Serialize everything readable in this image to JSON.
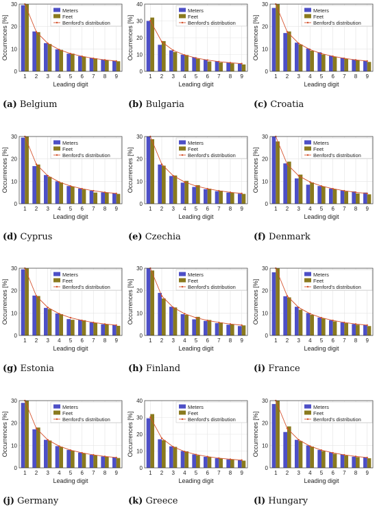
{
  "legend": {
    "meters_label": "Meters",
    "feet_label": "Feet",
    "benford_label": "Benford's distribution"
  },
  "colors": {
    "meters": "#4d4fc6",
    "feet": "#8a7a1e",
    "benford": "#d4502a",
    "grid": "#e3e3e3"
  },
  "chart_data": [
    {
      "type": "bar",
      "panel_label": "(a)",
      "title": "Belgium",
      "xlabel": "Leading digit",
      "ylabel": "Occurrences [%]",
      "categories": [
        "1",
        "2",
        "3",
        "4",
        "5",
        "6",
        "7",
        "8",
        "9"
      ],
      "ylim": [
        0,
        30
      ],
      "yticks": [
        0,
        10,
        20,
        30
      ],
      "series": [
        {
          "name": "Meters",
          "values": [
            29.5,
            17.8,
            12.6,
            9.8,
            7.9,
            6.8,
            6.0,
            5.2,
            4.7
          ]
        },
        {
          "name": "Feet",
          "values": [
            31.0,
            17.5,
            12.2,
            9.6,
            7.9,
            6.6,
            5.8,
            5.0,
            4.5
          ]
        },
        {
          "name": "Benford's distribution",
          "values": [
            30.1,
            17.6,
            12.5,
            9.7,
            7.9,
            6.7,
            5.8,
            5.1,
            4.6
          ]
        }
      ]
    },
    {
      "type": "bar",
      "panel_label": "(b)",
      "title": "Bulgaria",
      "xlabel": "Leading digit",
      "ylabel": "Occurrences [%]",
      "categories": [
        "1",
        "2",
        "3",
        "4",
        "5",
        "6",
        "7",
        "8",
        "9"
      ],
      "ylim": [
        0,
        40
      ],
      "yticks": [
        0,
        10,
        20,
        30,
        40
      ],
      "series": [
        {
          "name": "Meters",
          "values": [
            30.0,
            15.8,
            12.5,
            9.9,
            8.4,
            6.9,
            6.0,
            5.1,
            4.5
          ]
        },
        {
          "name": "Feet",
          "values": [
            32.0,
            18.0,
            11.5,
            9.7,
            7.5,
            5.9,
            5.3,
            4.8,
            4.1
          ]
        },
        {
          "name": "Benford's distribution",
          "values": [
            30.1,
            17.6,
            12.5,
            9.7,
            7.9,
            6.7,
            5.8,
            5.1,
            4.6
          ]
        }
      ]
    },
    {
      "type": "bar",
      "panel_label": "(c)",
      "title": "Croatia",
      "xlabel": "Leading digit",
      "ylabel": "Occurrences [%]",
      "categories": [
        "1",
        "2",
        "3",
        "4",
        "5",
        "6",
        "7",
        "8",
        "9"
      ],
      "ylim": [
        0,
        30
      ],
      "yticks": [
        0,
        10,
        20,
        30
      ],
      "series": [
        {
          "name": "Meters",
          "values": [
            28.3,
            17.1,
            12.8,
            10.2,
            8.5,
            7.0,
            6.1,
            5.3,
            4.7
          ]
        },
        {
          "name": "Feet",
          "values": [
            32.5,
            17.8,
            12.0,
            9.2,
            7.5,
            6.5,
            5.6,
            4.9,
            4.2
          ]
        },
        {
          "name": "Benford's distribution",
          "values": [
            30.1,
            17.6,
            12.5,
            9.7,
            7.9,
            6.7,
            5.8,
            5.1,
            4.6
          ]
        }
      ]
    },
    {
      "type": "bar",
      "panel_label": "(d)",
      "title": "Cyprus",
      "xlabel": "Leading digit",
      "ylabel": "Occurrences [%]",
      "categories": [
        "1",
        "2",
        "3",
        "4",
        "5",
        "6",
        "7",
        "8",
        "9"
      ],
      "ylim": [
        0,
        30
      ],
      "yticks": [
        0,
        10,
        20,
        30
      ],
      "series": [
        {
          "name": "Meters",
          "values": [
            29.5,
            16.8,
            12.8,
            10.0,
            7.9,
            6.8,
            5.8,
            5.1,
            4.6
          ]
        },
        {
          "name": "Feet",
          "values": [
            31.0,
            17.5,
            12.0,
            9.5,
            7.7,
            6.4,
            5.0,
            5.0,
            4.4
          ]
        },
        {
          "name": "Benford's distribution",
          "values": [
            30.1,
            17.6,
            12.5,
            9.7,
            7.9,
            6.7,
            5.8,
            5.1,
            4.6
          ]
        }
      ]
    },
    {
      "type": "bar",
      "panel_label": "(e)",
      "title": "Czechia",
      "xlabel": "Leading digit",
      "ylabel": "Occurrences [%]",
      "categories": [
        "1",
        "2",
        "3",
        "4",
        "5",
        "6",
        "7",
        "8",
        "9"
      ],
      "ylim": [
        0,
        30
      ],
      "yticks": [
        0,
        10,
        20,
        30
      ],
      "series": [
        {
          "name": "Meters",
          "values": [
            31.0,
            17.5,
            12.4,
            9.4,
            7.5,
            6.5,
            5.6,
            5.0,
            4.5
          ]
        },
        {
          "name": "Feet",
          "values": [
            28.8,
            17.0,
            12.6,
            10.2,
            8.3,
            6.7,
            5.8,
            5.0,
            4.4
          ]
        },
        {
          "name": "Benford's distribution",
          "values": [
            30.1,
            17.6,
            12.5,
            9.7,
            7.9,
            6.7,
            5.8,
            5.1,
            4.6
          ]
        }
      ]
    },
    {
      "type": "bar",
      "panel_label": "(f)",
      "title": "Denmark",
      "xlabel": "Leading digit",
      "ylabel": "Occurrences [%]",
      "categories": [
        "1",
        "2",
        "3",
        "4",
        "5",
        "6",
        "7",
        "8",
        "9"
      ],
      "ylim": [
        0,
        30
      ],
      "yticks": [
        0,
        10,
        20,
        30
      ],
      "series": [
        {
          "name": "Meters",
          "values": [
            30.5,
            18.0,
            11.3,
            8.5,
            7.9,
            6.8,
            5.9,
            5.5,
            5.0
          ]
        },
        {
          "name": "Feet",
          "values": [
            27.8,
            18.8,
            13.0,
            9.5,
            7.7,
            6.5,
            5.5,
            4.6,
            4.2
          ]
        },
        {
          "name": "Benford's distribution",
          "values": [
            30.1,
            17.6,
            12.5,
            9.7,
            7.9,
            6.7,
            5.8,
            5.1,
            4.6
          ]
        }
      ]
    },
    {
      "type": "bar",
      "panel_label": "(g)",
      "title": "Estonia",
      "xlabel": "Leading digit",
      "ylabel": "Occurrences [%]",
      "categories": [
        "1",
        "2",
        "3",
        "4",
        "5",
        "6",
        "7",
        "8",
        "9"
      ],
      "ylim": [
        0,
        30
      ],
      "yticks": [
        0,
        10,
        20,
        30
      ],
      "series": [
        {
          "name": "Meters",
          "values": [
            29.5,
            17.8,
            12.3,
            9.8,
            7.3,
            7.0,
            5.8,
            5.0,
            4.6
          ]
        },
        {
          "name": "Feet",
          "values": [
            30.0,
            17.6,
            11.8,
            9.5,
            7.0,
            6.8,
            5.6,
            4.9,
            4.3
          ]
        },
        {
          "name": "Benford's distribution",
          "values": [
            30.1,
            17.6,
            12.5,
            9.7,
            7.9,
            6.7,
            5.8,
            5.1,
            4.6
          ]
        }
      ]
    },
    {
      "type": "bar",
      "panel_label": "(h)",
      "title": "Finland",
      "xlabel": "Leading digit",
      "ylabel": "Occurrences [%]",
      "categories": [
        "1",
        "2",
        "3",
        "4",
        "5",
        "6",
        "7",
        "8",
        "9"
      ],
      "ylim": [
        0,
        30
      ],
      "yticks": [
        0,
        10,
        20,
        30
      ],
      "series": [
        {
          "name": "Meters",
          "values": [
            30.5,
            19.0,
            12.8,
            9.5,
            7.2,
            6.5,
            5.5,
            4.8,
            4.2
          ]
        },
        {
          "name": "Feet",
          "values": [
            29.0,
            16.5,
            12.5,
            9.2,
            8.3,
            6.9,
            5.8,
            5.0,
            4.5
          ]
        },
        {
          "name": "Benford's distribution",
          "values": [
            30.1,
            17.6,
            12.5,
            9.7,
            7.9,
            6.7,
            5.8,
            5.1,
            4.6
          ]
        }
      ]
    },
    {
      "type": "bar",
      "panel_label": "(i)",
      "title": "France",
      "xlabel": "Leading digit",
      "ylabel": "Occurrences [%]",
      "categories": [
        "1",
        "2",
        "3",
        "4",
        "5",
        "6",
        "7",
        "8",
        "9"
      ],
      "ylim": [
        0,
        30
      ],
      "yticks": [
        0,
        10,
        20,
        30
      ],
      "series": [
        {
          "name": "Meters",
          "values": [
            28.2,
            17.5,
            12.8,
            10.0,
            8.0,
            6.8,
            5.8,
            5.1,
            4.6
          ]
        },
        {
          "name": "Feet",
          "values": [
            32.0,
            17.0,
            11.5,
            9.2,
            7.6,
            6.3,
            5.5,
            4.8,
            4.2
          ]
        },
        {
          "name": "Benford's distribution",
          "values": [
            30.1,
            17.6,
            12.5,
            9.7,
            7.9,
            6.7,
            5.8,
            5.1,
            4.6
          ]
        }
      ]
    },
    {
      "type": "bar",
      "panel_label": "(j)",
      "title": "Germany",
      "xlabel": "Leading digit",
      "ylabel": "Occurrences [%]",
      "categories": [
        "1",
        "2",
        "3",
        "4",
        "5",
        "6",
        "7",
        "8",
        "9"
      ],
      "ylim": [
        0,
        30
      ],
      "yticks": [
        0,
        10,
        20,
        30
      ],
      "series": [
        {
          "name": "Meters",
          "values": [
            29.0,
            17.2,
            12.5,
            9.7,
            8.0,
            6.8,
            5.8,
            5.1,
            4.6
          ]
        },
        {
          "name": "Feet",
          "values": [
            30.5,
            18.0,
            12.2,
            9.4,
            7.7,
            6.5,
            5.6,
            4.9,
            4.4
          ]
        },
        {
          "name": "Benford's distribution",
          "values": [
            30.1,
            17.6,
            12.5,
            9.7,
            7.9,
            6.7,
            5.8,
            5.1,
            4.6
          ]
        }
      ]
    },
    {
      "type": "bar",
      "panel_label": "(k)",
      "title": "Greece",
      "xlabel": "Leading digit",
      "ylabel": "Occurrences [%]",
      "categories": [
        "1",
        "2",
        "3",
        "4",
        "5",
        "6",
        "7",
        "8",
        "9"
      ],
      "ylim": [
        0,
        40
      ],
      "yticks": [
        0,
        10,
        20,
        30,
        40
      ],
      "series": [
        {
          "name": "Meters",
          "values": [
            29.5,
            17.0,
            12.8,
            10.0,
            8.0,
            6.6,
            5.7,
            5.0,
            4.5
          ]
        },
        {
          "name": "Feet",
          "values": [
            32.0,
            16.5,
            12.5,
            9.8,
            7.5,
            6.5,
            5.6,
            5.0,
            4.3
          ]
        },
        {
          "name": "Benford's distribution",
          "values": [
            30.1,
            17.6,
            12.5,
            9.7,
            7.9,
            6.7,
            5.8,
            5.1,
            4.6
          ]
        }
      ]
    },
    {
      "type": "bar",
      "panel_label": "(l)",
      "title": "Hungary",
      "xlabel": "Leading digit",
      "ylabel": "Occurrences [%]",
      "categories": [
        "1",
        "2",
        "3",
        "4",
        "5",
        "6",
        "7",
        "8",
        "9"
      ],
      "ylim": [
        0,
        30
      ],
      "yticks": [
        0,
        10,
        20,
        30
      ],
      "series": [
        {
          "name": "Meters",
          "values": [
            28.5,
            16.0,
            12.5,
            10.0,
            8.0,
            6.9,
            6.0,
            5.0,
            4.6
          ]
        },
        {
          "name": "Feet",
          "values": [
            32.0,
            18.5,
            12.0,
            9.5,
            7.5,
            6.3,
            5.5,
            4.8,
            4.3
          ]
        },
        {
          "name": "Benford's distribution",
          "values": [
            30.1,
            17.6,
            12.5,
            9.7,
            7.9,
            6.7,
            5.8,
            5.1,
            4.6
          ]
        }
      ]
    }
  ]
}
